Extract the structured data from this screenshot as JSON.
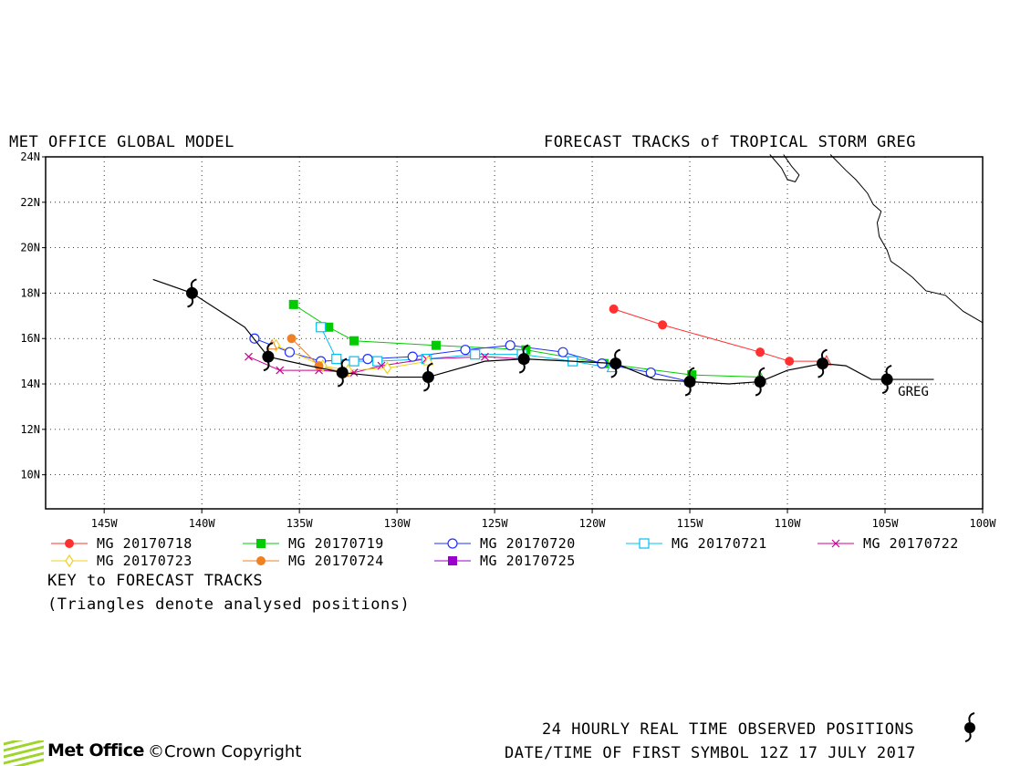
{
  "header": {
    "left_title": "MET OFFICE GLOBAL MODEL",
    "right_title": "FORECAST TRACKS of TROPICAL STORM GREG"
  },
  "chart_data": {
    "type": "map-tracks",
    "title": "FORECAST TRACKS of TROPICAL STORM GREG",
    "xlim": [
      -148,
      -100
    ],
    "ylim": [
      8.5,
      24
    ],
    "x_ticks": [
      {
        "value": -145,
        "label": "145W"
      },
      {
        "value": -140,
        "label": "140W"
      },
      {
        "value": -135,
        "label": "135W"
      },
      {
        "value": -130,
        "label": "130W"
      },
      {
        "value": -125,
        "label": "125W"
      },
      {
        "value": -120,
        "label": "120W"
      },
      {
        "value": -115,
        "label": "115W"
      },
      {
        "value": -110,
        "label": "110W"
      },
      {
        "value": -105,
        "label": "105W"
      },
      {
        "value": -100,
        "label": "100W"
      }
    ],
    "y_ticks": [
      {
        "value": 10,
        "label": "10N"
      },
      {
        "value": 12,
        "label": "12N"
      },
      {
        "value": 14,
        "label": "14N"
      },
      {
        "value": 16,
        "label": "16N"
      },
      {
        "value": 18,
        "label": "18N"
      },
      {
        "value": 20,
        "label": "20N"
      },
      {
        "value": 22,
        "label": "22N"
      },
      {
        "value": 24,
        "label": "24N"
      }
    ],
    "grid": true,
    "storm_label": "GREG",
    "observed_track": [
      [
        -102.5,
        14.2
      ],
      [
        -104.9,
        14.2
      ],
      [
        -105.7,
        14.2
      ],
      [
        -107.0,
        14.8
      ],
      [
        -108.2,
        14.9
      ],
      [
        -110.0,
        14.6
      ],
      [
        -111.4,
        14.1
      ],
      [
        -113.0,
        14.0
      ],
      [
        -115.0,
        14.1
      ],
      [
        -116.8,
        14.2
      ],
      [
        -118.8,
        14.9
      ],
      [
        -121.0,
        15.0
      ],
      [
        -123.5,
        15.1
      ],
      [
        -125.5,
        15.0
      ],
      [
        -128.4,
        14.3
      ],
      [
        -130.5,
        14.3
      ],
      [
        -132.8,
        14.5
      ],
      [
        -134.5,
        14.8
      ],
      [
        -136.6,
        15.2
      ],
      [
        -137.8,
        16.5
      ],
      [
        -140.5,
        18.0
      ],
      [
        -142.5,
        18.6
      ]
    ],
    "observed_symbols": [
      [
        -104.9,
        14.2
      ],
      [
        -108.2,
        14.9
      ],
      [
        -111.4,
        14.1
      ],
      [
        -115.0,
        14.1
      ],
      [
        -118.8,
        14.9
      ],
      [
        -123.5,
        15.1
      ],
      [
        -128.4,
        14.3
      ],
      [
        -132.8,
        14.5
      ],
      [
        -136.6,
        15.2
      ],
      [
        -140.5,
        18.0
      ]
    ],
    "coastline": [
      [
        [
          -110.9,
          24.1
        ],
        [
          -110.3,
          23.5
        ],
        [
          -110.0,
          23.0
        ],
        [
          -109.6,
          22.9
        ],
        [
          -109.4,
          23.2
        ],
        [
          -109.8,
          23.6
        ],
        [
          -110.2,
          24.1
        ]
      ],
      [
        [
          -107.8,
          24.1
        ],
        [
          -107.0,
          23.4
        ],
        [
          -106.5,
          23.0
        ],
        [
          -105.9,
          22.4
        ],
        [
          -105.6,
          21.9
        ],
        [
          -105.2,
          21.6
        ],
        [
          -105.4,
          21.1
        ],
        [
          -105.3,
          20.5
        ],
        [
          -104.9,
          19.9
        ],
        [
          -104.7,
          19.4
        ],
        [
          -104.2,
          19.1
        ],
        [
          -103.6,
          18.7
        ],
        [
          -102.9,
          18.1
        ],
        [
          -101.9,
          17.9
        ],
        [
          -101.0,
          17.2
        ],
        [
          -100.2,
          16.8
        ],
        [
          -100.0,
          16.7
        ]
      ]
    ],
    "series": [
      {
        "name": "MG 20170718",
        "color": "#ff3030",
        "marker": "filled-circle",
        "points": [
          [
            -108.0,
            15.0
          ],
          [
            -109.9,
            15.0
          ],
          [
            -111.4,
            15.4
          ],
          [
            -116.4,
            16.6
          ],
          [
            -118.9,
            17.3
          ]
        ]
      },
      {
        "name": "MG 20170719",
        "color": "#00cc00",
        "marker": "filled-square",
        "points": [
          [
            -111.4,
            14.3
          ],
          [
            -114.9,
            14.4
          ],
          [
            -119.4,
            14.9
          ],
          [
            -123.4,
            15.5
          ],
          [
            -128.0,
            15.7
          ],
          [
            -132.2,
            15.9
          ],
          [
            -133.5,
            16.5
          ],
          [
            -135.3,
            17.5
          ]
        ]
      },
      {
        "name": "MG 20170720",
        "color": "#2030ff",
        "marker": "open-circle",
        "points": [
          [
            -115.0,
            14.1
          ],
          [
            -117.0,
            14.5
          ],
          [
            -119.5,
            14.9
          ],
          [
            -121.5,
            15.4
          ],
          [
            -124.2,
            15.7
          ],
          [
            -126.5,
            15.5
          ],
          [
            -129.2,
            15.2
          ],
          [
            -131.5,
            15.1
          ],
          [
            -133.9,
            15.0
          ],
          [
            -135.5,
            15.4
          ],
          [
            -137.3,
            16.0
          ]
        ]
      },
      {
        "name": "MG 20170721",
        "color": "#00c0f0",
        "marker": "open-square",
        "points": [
          [
            -119.0,
            14.7
          ],
          [
            -121.0,
            15.0
          ],
          [
            -123.6,
            15.3
          ],
          [
            -126.0,
            15.3
          ],
          [
            -128.5,
            15.1
          ],
          [
            -131.0,
            15.0
          ],
          [
            -132.2,
            15.0
          ],
          [
            -133.1,
            15.1
          ],
          [
            -133.9,
            16.5
          ]
        ]
      },
      {
        "name": "MG 20170722",
        "color": "#cc0090",
        "marker": "x",
        "points": [
          [
            -123.5,
            15.1
          ],
          [
            -125.5,
            15.2
          ],
          [
            -128.5,
            15.1
          ],
          [
            -130.8,
            14.8
          ],
          [
            -132.2,
            14.5
          ],
          [
            -134.0,
            14.6
          ],
          [
            -136.0,
            14.6
          ],
          [
            -137.6,
            15.2
          ]
        ]
      },
      {
        "name": "MG 20170723",
        "color": "#f0d020",
        "marker": "open-diamond",
        "points": [
          [
            -128.4,
            15.0
          ],
          [
            -130.5,
            14.7
          ],
          [
            -132.5,
            14.6
          ],
          [
            -133.8,
            14.8
          ],
          [
            -136.2,
            15.7
          ]
        ]
      },
      {
        "name": "MG 20170724",
        "color": "#f08020",
        "marker": "filled-circle",
        "points": [
          [
            -132.7,
            14.5
          ],
          [
            -134.0,
            14.8
          ],
          [
            -135.4,
            16.0
          ]
        ]
      },
      {
        "name": "MG 20170725",
        "color": "#9900cc",
        "marker": "filled-square",
        "points": []
      }
    ],
    "analysed_triangles": [
      {
        "series": "MG 20170718",
        "point": [
          -108.0,
          15.0
        ]
      },
      {
        "series": "MG 20170719",
        "point": [
          -111.4,
          14.3
        ]
      },
      {
        "series": "MG 20170720",
        "point": [
          -115.0,
          14.1
        ]
      },
      {
        "series": "MG 20170721",
        "point": [
          -119.0,
          14.7
        ]
      },
      {
        "series": "MG 20170722",
        "point": [
          -123.5,
          15.1
        ]
      },
      {
        "series": "MG 20170723",
        "point": [
          -128.4,
          15.0
        ]
      },
      {
        "series": "MG 20170724",
        "point": [
          -132.7,
          14.5
        ]
      },
      {
        "series": "MG 20170724",
        "point": [
          -136.4,
          15.7
        ]
      }
    ]
  },
  "legend": {
    "key_title": "KEY to FORECAST TRACKS",
    "note": "(Triangles denote analysed positions)"
  },
  "footer": {
    "observed_note": "24 HOURLY REAL TIME OBSERVED POSITIONS",
    "first_symbol": "DATE/TIME OF FIRST SYMBOL 12Z 17 JULY 2017",
    "logo_text": "Met Office",
    "copyright_symbol": "©",
    "copyright": "Crown Copyright"
  }
}
